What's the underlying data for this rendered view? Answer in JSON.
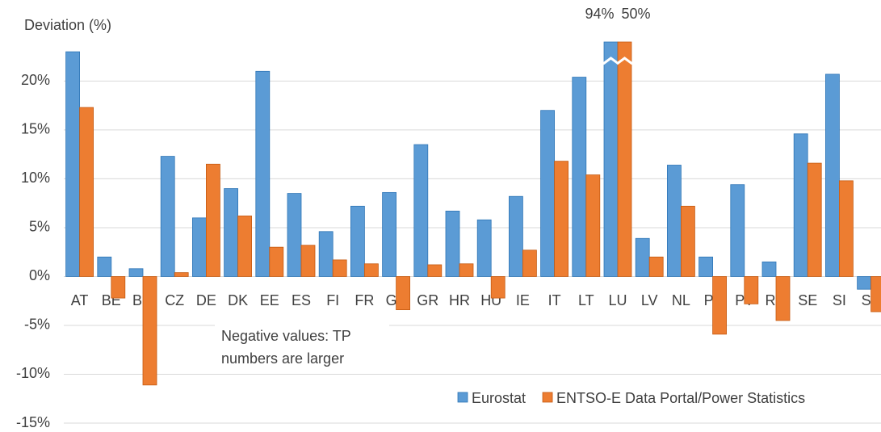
{
  "chart_data": {
    "type": "bar",
    "y_label": "Deviation (%)",
    "categories": [
      "AT",
      "BE",
      "BG",
      "CZ",
      "DE",
      "DK",
      "EE",
      "ES",
      "FI",
      "FR",
      "GB",
      "GR",
      "HR",
      "HU",
      "IE",
      "IT",
      "LT",
      "LU",
      "LV",
      "NL",
      "PL",
      "PT",
      "RO",
      "SE",
      "SI",
      "SK"
    ],
    "series": [
      {
        "name": "Eurostat",
        "color": "#5b9bd5",
        "values": [
          23.0,
          2.0,
          0.8,
          12.3,
          6.0,
          9.0,
          21.0,
          8.5,
          4.6,
          7.2,
          8.6,
          13.5,
          6.7,
          5.8,
          8.2,
          17.0,
          20.4,
          94,
          3.9,
          11.4,
          2.0,
          9.4,
          1.5,
          14.6,
          20.7,
          -1.3
        ],
        "value_labels": [
          null,
          null,
          null,
          null,
          null,
          null,
          null,
          null,
          null,
          null,
          null,
          null,
          null,
          null,
          null,
          null,
          null,
          "94%",
          null,
          null,
          null,
          null,
          null,
          null,
          null,
          null
        ]
      },
      {
        "name": "ENTSO-E Data Portal/Power Statistics",
        "color": "#ed7d31",
        "values": [
          17.3,
          -2.2,
          -11.1,
          0.4,
          11.5,
          6.2,
          3.0,
          3.2,
          1.7,
          1.3,
          -3.4,
          1.2,
          1.3,
          -2.2,
          2.7,
          11.8,
          10.4,
          50,
          2.0,
          7.2,
          -5.9,
          -2.8,
          -4.5,
          11.6,
          9.8,
          -3.6
        ],
        "value_labels": [
          null,
          null,
          null,
          null,
          null,
          null,
          null,
          null,
          null,
          null,
          null,
          null,
          null,
          null,
          null,
          null,
          null,
          "50%",
          null,
          null,
          null,
          null,
          null,
          null,
          null,
          null
        ]
      }
    ],
    "ylim": [
      -15,
      24
    ],
    "yticks": [
      {
        "value": -15,
        "label": "-15%"
      },
      {
        "value": -10,
        "label": "-10%"
      },
      {
        "value": -5,
        "label": "-5%"
      },
      {
        "value": 0,
        "label": "0%"
      },
      {
        "value": 5,
        "label": "5%"
      },
      {
        "value": 10,
        "label": "10%"
      },
      {
        "value": 15,
        "label": "15%"
      },
      {
        "value": 20,
        "label": "20%"
      }
    ],
    "grid": true,
    "annotation": "Negative values: TP numbers are larger"
  }
}
